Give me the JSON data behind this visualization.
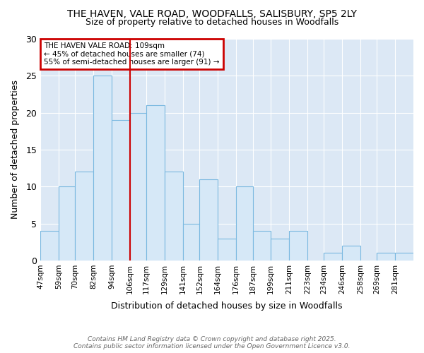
{
  "title_line1": "THE HAVEN, VALE ROAD, WOODFALLS, SALISBURY, SP5 2LY",
  "title_line2": "Size of property relative to detached houses in Woodfalls",
  "xlabel": "Distribution of detached houses by size in Woodfalls",
  "ylabel": "Number of detached properties",
  "bins": [
    "47sqm",
    "59sqm",
    "70sqm",
    "82sqm",
    "94sqm",
    "106sqm",
    "117sqm",
    "129sqm",
    "141sqm",
    "152sqm",
    "164sqm",
    "176sqm",
    "187sqm",
    "199sqm",
    "211sqm",
    "223sqm",
    "234sqm",
    "246sqm",
    "258sqm",
    "269sqm",
    "281sqm"
  ],
  "bin_starts": [
    47,
    59,
    70,
    82,
    94,
    106,
    117,
    129,
    141,
    152,
    164,
    176,
    187,
    199,
    211,
    223,
    234,
    246,
    258,
    269,
    281
  ],
  "values": [
    4,
    10,
    12,
    25,
    19,
    20,
    21,
    12,
    5,
    11,
    3,
    10,
    4,
    3,
    4,
    0,
    1,
    2,
    0,
    1,
    1
  ],
  "bar_color": "#d6e8f7",
  "bar_edge_color": "#7ab8e0",
  "red_line_x": 106,
  "annotation_line1": "THE HAVEN VALE ROAD: 109sqm",
  "annotation_line2": "← 45% of detached houses are smaller (74)",
  "annotation_line3": "55% of semi-detached houses are larger (91) →",
  "annotation_box_color": "#ffffff",
  "annotation_edge_color": "#cc0000",
  "red_line_color": "#cc0000",
  "ylim": [
    0,
    30
  ],
  "yticks": [
    0,
    5,
    10,
    15,
    20,
    25,
    30
  ],
  "footer_line1": "Contains HM Land Registry data © Crown copyright and database right 2025.",
  "footer_line2": "Contains public sector information licensed under the Open Government Licence v3.0.",
  "bg_color": "#ffffff",
  "plot_bg_color": "#dce8f5",
  "grid_color": "#ffffff"
}
